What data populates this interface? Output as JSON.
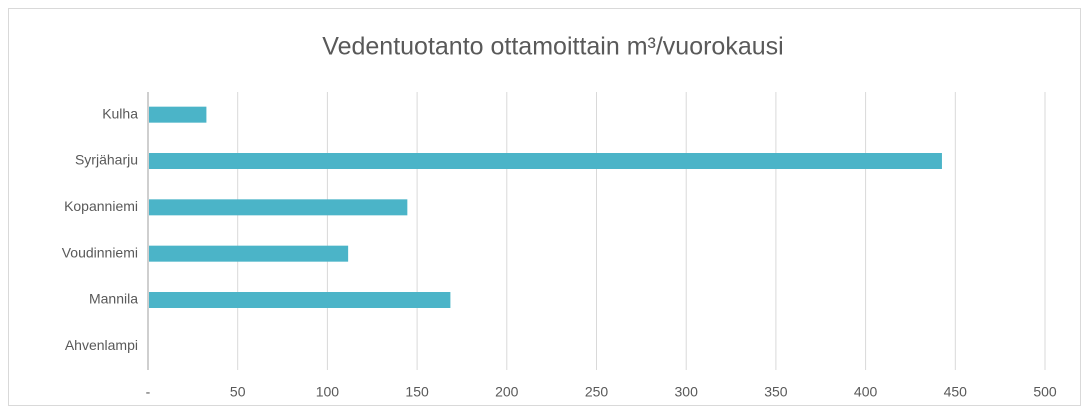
{
  "chart_data": {
    "type": "barh",
    "title": "Vedentuotanto ottamoittain m³/vuorokausi",
    "categories": [
      "Kulha",
      "Syrjäharju",
      "Kopanniemi",
      "Voudinniemi",
      "Mannila",
      "Ahvenlampi"
    ],
    "values": [
      32,
      442,
      144,
      111,
      168,
      0
    ],
    "color": "#4bb4c8",
    "xlim": [
      0,
      500
    ],
    "xticks": [
      {
        "value": 0,
        "label": "-"
      },
      50,
      100,
      150,
      200,
      250,
      300,
      350,
      400,
      450,
      500
    ],
    "grid": true
  }
}
